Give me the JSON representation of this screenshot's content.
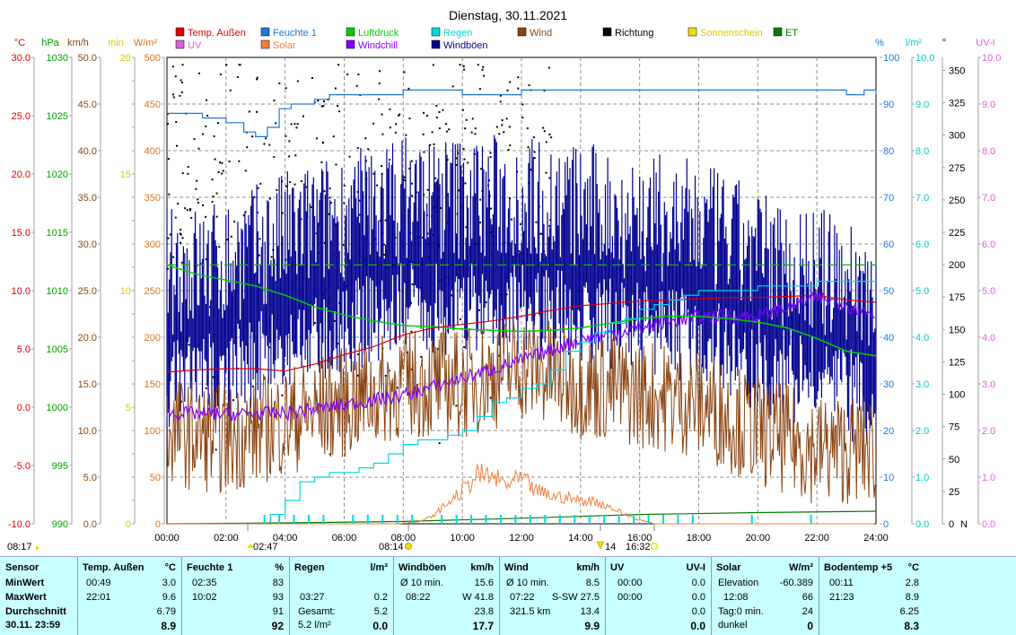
{
  "chart_data": {
    "type": "line",
    "title": "Dienstag, 30.11.2021",
    "x_ticks": [
      "00:00",
      "02:00",
      "04:00",
      "06:00",
      "08:00",
      "10:00",
      "12:00",
      "14:00",
      "16:00",
      "18:00",
      "20:00",
      "22:00",
      "24:00"
    ],
    "xlim": [
      0,
      24
    ],
    "grid": true,
    "legend": [
      {
        "name": "Temp. Außen",
        "color": "#e00000"
      },
      {
        "name": "Feuchte 1",
        "color": "#1e78d8"
      },
      {
        "name": "Luftdruck",
        "color": "#00d000"
      },
      {
        "name": "Regen",
        "color": "#00d8e0"
      },
      {
        "name": "Wind",
        "color": "#8b4513"
      },
      {
        "name": "Richtung",
        "color": "#000000"
      },
      {
        "name": "Sonnenschein",
        "color": "#f0e000"
      },
      {
        "name": "ET",
        "color": "#008000"
      },
      {
        "name": "UV",
        "color": "#e060e0"
      },
      {
        "name": "Solar",
        "color": "#f08040"
      },
      {
        "name": "Windchill",
        "color": "#8000ff"
      },
      {
        "name": "Windböen",
        "color": "#000090"
      }
    ],
    "left_axes": [
      {
        "unit": "°C",
        "color": "#e00000",
        "ticks": [
          "30.0",
          "25.0",
          "20.0",
          "15.0",
          "10.0",
          "5.0",
          "0.0",
          "-5.0",
          "-10.0"
        ],
        "ylim": [
          -10,
          30
        ]
      },
      {
        "unit": "hPa",
        "color": "#00a000",
        "ticks": [
          "1030",
          "1025",
          "1020",
          "1015",
          "1010",
          "1005",
          "1000",
          "995",
          "990"
        ],
        "ylim": [
          990,
          1030
        ]
      },
      {
        "unit": "km/h",
        "color": "#8b4513",
        "ticks": [
          "50.0",
          "45.0",
          "40.0",
          "35.0",
          "30.0",
          "25.0",
          "20.0",
          "15.0",
          "10.0",
          "5.0",
          "0.0"
        ],
        "ylim": [
          0,
          50
        ]
      },
      {
        "unit": "min",
        "color": "#d8c800",
        "ticks": [
          "20",
          "",
          "",
          "",
          "",
          "15",
          "",
          "",
          "",
          "",
          "10",
          "",
          "",
          "",
          "",
          "5",
          "",
          "",
          "",
          "",
          "0"
        ],
        "ylim": [
          0,
          20
        ]
      },
      {
        "unit": "W/m²",
        "color": "#e07020",
        "ticks": [
          "500",
          "450",
          "400",
          "350",
          "300",
          "250",
          "200",
          "150",
          "100",
          "50",
          "0"
        ],
        "ylim": [
          0,
          500
        ]
      }
    ],
    "right_axes": [
      {
        "unit": "%",
        "color": "#1e78d8",
        "ticks": [
          "100",
          "90",
          "80",
          "70",
          "60",
          "50",
          "40",
          "30",
          "20",
          "10",
          "0"
        ],
        "ylim": [
          0,
          100
        ]
      },
      {
        "unit": "l/m²",
        "color": "#00c8d0",
        "ticks": [
          "10.0",
          "9.0",
          "8.0",
          "7.0",
          "6.0",
          "5.0",
          "4.0",
          "3.0",
          "2.0",
          "1.0",
          "0.0"
        ],
        "ylim": [
          0,
          10
        ]
      },
      {
        "unit": "°",
        "color": "#000000",
        "ticks": [
          "350",
          "325",
          "300",
          "275",
          "250",
          "225",
          "200",
          "175",
          "150",
          "125",
          "100",
          "75",
          "50",
          "25",
          "0"
        ],
        "ylim": [
          0,
          360
        ]
      },
      {
        "unit": "UV-I",
        "color": "#e060e0",
        "ticks": [
          "10.0",
          "9.0",
          "8.0",
          "7.0",
          "6.0",
          "5.0",
          "4.0",
          "3.0",
          "2.0",
          "1.0",
          "0.0"
        ],
        "ylim": [
          0,
          10
        ]
      }
    ],
    "north_label": "N",
    "series": [
      {
        "name": "Temp. Außen",
        "axis": "°C",
        "x": [
          0,
          1,
          2,
          3,
          4,
          5,
          6,
          7,
          8,
          9,
          10,
          11,
          12,
          13,
          14,
          15,
          16,
          17,
          18,
          19,
          20,
          21,
          22,
          23,
          24
        ],
        "values": [
          3.0,
          3.2,
          3.3,
          3.3,
          3.1,
          3.7,
          4.5,
          5.2,
          6.2,
          6.8,
          7.1,
          7.4,
          7.8,
          8.3,
          8.7,
          8.9,
          9.1,
          9.2,
          9.3,
          9.4,
          9.4,
          9.5,
          9.6,
          9.2,
          9.0
        ]
      },
      {
        "name": "Feuchte 1",
        "axis": "%",
        "x": [
          0,
          0.7,
          1.2,
          2,
          2.6,
          3,
          3.4,
          3.8,
          4.2,
          5,
          5.5,
          6,
          6.5,
          8,
          10,
          12,
          14,
          16,
          18,
          20,
          22,
          23,
          23.6,
          24
        ],
        "values": [
          88,
          88,
          87,
          86,
          84,
          83,
          85,
          89,
          90,
          91,
          92,
          92,
          92,
          93,
          92,
          93,
          93,
          93,
          93,
          93,
          93,
          92,
          93,
          92
        ]
      },
      {
        "name": "Luftdruck",
        "axis": "hPa",
        "x": [
          0,
          1,
          2,
          3,
          4,
          5,
          6,
          7,
          8,
          9,
          10,
          11,
          12,
          13,
          14,
          15,
          16,
          17,
          18,
          19,
          20,
          21,
          22,
          23,
          24
        ],
        "values": [
          1012.2,
          1011.4,
          1010.9,
          1010.4,
          1009.6,
          1008.6,
          1007.9,
          1007.4,
          1007.0,
          1006.9,
          1006.7,
          1006.6,
          1006.5,
          1006.6,
          1006.8,
          1007.2,
          1007.6,
          1007.8,
          1007.8,
          1007.6,
          1007.3,
          1006.8,
          1005.9,
          1004.8,
          1004.4
        ]
      },
      {
        "name": "Regen",
        "axis": "l/m²",
        "x": [
          0,
          3.5,
          4.0,
          4.5,
          5.0,
          5.5,
          6.0,
          6.5,
          7.0,
          7.5,
          8.0,
          8.5,
          9.0,
          9.5,
          10.0,
          10.5,
          11.0,
          11.5,
          12.0,
          12.5,
          13.0,
          13.5,
          14.0,
          14.5,
          15.0,
          15.5,
          16.0,
          16.5,
          17.0,
          17.5,
          18.0,
          19.0,
          20.0,
          21.0,
          22.0,
          23.0,
          24.0
        ],
        "values": [
          0,
          0.2,
          0.5,
          0.9,
          1.0,
          1.1,
          1.1,
          1.2,
          1.3,
          1.5,
          1.7,
          1.8,
          1.8,
          1.9,
          2.0,
          2.3,
          2.6,
          2.7,
          2.9,
          3.0,
          3.3,
          3.7,
          3.9,
          4.1,
          4.3,
          4.4,
          4.6,
          4.7,
          4.8,
          4.9,
          5.0,
          5.0,
          5.1,
          5.1,
          5.2,
          5.2,
          5.2
        ]
      },
      {
        "name": "ET",
        "axis": "l/m²",
        "x": [
          0,
          4,
          8,
          12,
          16,
          20,
          24
        ],
        "values": [
          0,
          0.02,
          0.05,
          0.12,
          0.2,
          0.24,
          0.27
        ]
      },
      {
        "name": "Solar",
        "axis": "W/m²",
        "x": [
          0,
          7.8,
          8.5,
          9,
          9.5,
          10,
          10.5,
          11,
          11.5,
          12,
          12.5,
          13,
          13.5,
          14,
          14.5,
          15,
          15.5,
          16,
          16.5,
          17,
          24
        ],
        "values": [
          0,
          0,
          2,
          8,
          22,
          35,
          52,
          50,
          42,
          48,
          35,
          30,
          28,
          25,
          24,
          18,
          10,
          4,
          0,
          0,
          0
        ]
      },
      {
        "name": "Windchill",
        "axis": "°C",
        "x": [
          0,
          2,
          4,
          6,
          8,
          10,
          12,
          14,
          16,
          18,
          20,
          21,
          22,
          23,
          24
        ],
        "values": [
          -0.5,
          -0.6,
          -0.5,
          0.2,
          1.0,
          2.5,
          4.0,
          5.8,
          6.8,
          7.8,
          7.8,
          8.6,
          9.4,
          8.8,
          7.8
        ]
      },
      {
        "name": "Wind",
        "axis": "km/h",
        "mean_x": [
          0,
          2,
          4,
          6,
          8,
          10,
          12,
          14,
          16,
          18,
          20,
          22,
          24
        ],
        "mean_values": [
          10,
          9,
          11,
          13,
          15,
          15,
          17,
          15,
          14,
          13,
          10,
          8,
          8
        ]
      },
      {
        "name": "Windböen",
        "axis": "km/h",
        "mean_x": [
          0,
          2,
          4,
          6,
          8,
          10,
          12,
          14,
          16,
          18,
          20,
          22,
          24
        ],
        "mean_values": [
          20,
          21,
          24,
          26,
          28,
          28,
          28,
          27,
          26,
          25,
          22,
          20,
          18
        ]
      }
    ],
    "markers": {
      "sunrise_time": "08:14",
      "sunset_time": "16:32",
      "time_02_47": "02:47",
      "dawn_time": "08:17",
      "low_marker": "14"
    }
  },
  "stats": {
    "rows": [
      "Sensor",
      "MinWert",
      "MaxWert",
      "Durchschnitt",
      "30.11. 23:59"
    ],
    "temp": {
      "title": "Temp. Außen",
      "unit": "°C",
      "min_time": "00:49",
      "min": "3.0",
      "max_time": "22:01",
      "max": "9.6",
      "avg": "6.79",
      "current": "8.9"
    },
    "feuchte": {
      "title": "Feuchte 1",
      "unit": "%",
      "min_time": "02:35",
      "min": "83",
      "max_time": "10:02",
      "max": "93",
      "avg": "91",
      "current": "92"
    },
    "regen": {
      "title": "Regen",
      "unit": "l/m²",
      "max_time": "03:27",
      "max": "0.2",
      "gesamt_label": "Gesamt:",
      "gesamt": "5.2",
      "current_label": "5.2 l/m²",
      "current": "0.0"
    },
    "windboeen": {
      "title": "Windböen",
      "unit": "km/h",
      "r1_label": "Ø 10 min.",
      "r1_val": "15.6",
      "max_time": "08:22",
      "max_dir": "W 41.8",
      "avg": "23.8",
      "current": "17.7"
    },
    "wind": {
      "title": "Wind",
      "unit": "km/h",
      "r1_label": "Ø 10 min.",
      "r1_val": "8.5",
      "max_time": "07:22",
      "max_dir": "S-SW 27.5",
      "dist": "321.5 km",
      "avg": "13.4",
      "current": "9.9"
    },
    "uv": {
      "title": "UV",
      "unit": "UV-I",
      "min_time": "00:00",
      "min": "0.0",
      "max_time": "00:00",
      "max": "0.0",
      "avg": "0.0",
      "current": "0.0"
    },
    "solar": {
      "title": "Solar",
      "unit": "W/m²",
      "elev_label": "Elevation",
      "elev": "-60.389",
      "max_time": "12:08",
      "max": "66",
      "tag_label": "Tag:0 min.",
      "tag": "24",
      "dunkel": "dunkel",
      "current": "0"
    },
    "boden": {
      "title": "Bodentemp +5",
      "unit": "°C",
      "min_time": "00:11",
      "min": "2.8",
      "max_time": "21:23",
      "max": "8.9",
      "avg": "6.25",
      "current": "8.3"
    }
  }
}
